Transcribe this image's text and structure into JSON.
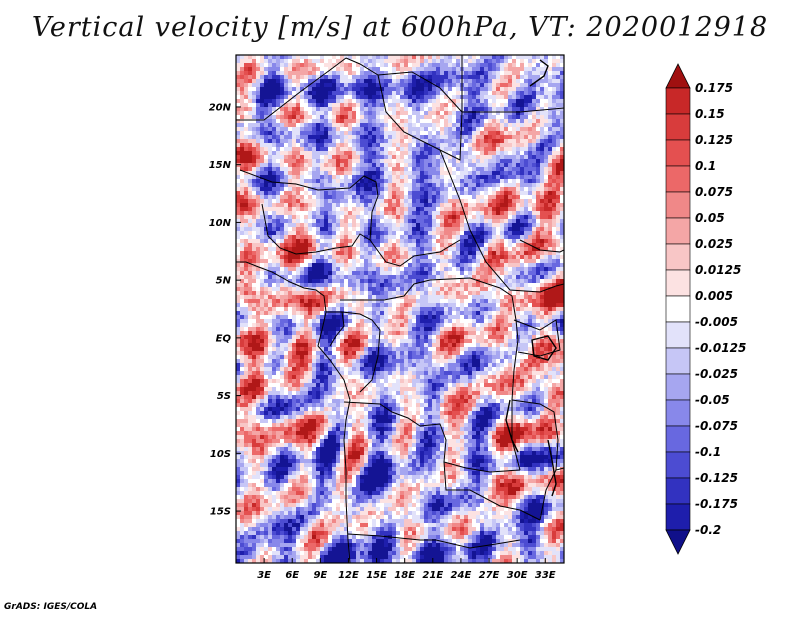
{
  "title": "Vertical velocity [m/s] at 600hPa, VT: 2020012918",
  "credit": "GrADS: IGES/COLA",
  "map": {
    "variable": "Vertical velocity",
    "units": "m/s",
    "level": "600hPa",
    "valid_time": "2020012918",
    "lon_range": [
      0,
      35
    ],
    "lat_range": [
      -19.5,
      24.5
    ],
    "lat_ticks": [
      {
        "value": 20,
        "label": "20N"
      },
      {
        "value": 15,
        "label": "15N"
      },
      {
        "value": 10,
        "label": "10N"
      },
      {
        "value": 5,
        "label": "5N"
      },
      {
        "value": 0,
        "label": "EQ"
      },
      {
        "value": -5,
        "label": "5S"
      },
      {
        "value": -10,
        "label": "10S"
      },
      {
        "value": -15,
        "label": "15S"
      }
    ],
    "lon_ticks": [
      {
        "value": 3,
        "label": "3E"
      },
      {
        "value": 6,
        "label": "6E"
      },
      {
        "value": 9,
        "label": "9E"
      },
      {
        "value": 12,
        "label": "12E"
      },
      {
        "value": 15,
        "label": "15E"
      },
      {
        "value": 18,
        "label": "18E"
      },
      {
        "value": 21,
        "label": "21E"
      },
      {
        "value": 24,
        "label": "24E"
      },
      {
        "value": 27,
        "label": "27E"
      },
      {
        "value": 30,
        "label": "30E"
      },
      {
        "value": 33,
        "label": "33E"
      }
    ]
  },
  "colorbar": {
    "levels": [
      "0.175",
      "0.15",
      "0.125",
      "0.1",
      "0.075",
      "0.05",
      "0.025",
      "0.0125",
      "0.005",
      "-0.005",
      "-0.0125",
      "-0.025",
      "-0.05",
      "-0.075",
      "-0.1",
      "-0.125",
      "-0.175",
      "-0.2"
    ],
    "colors": [
      "#b01818",
      "#c82828",
      "#d83c3c",
      "#e45050",
      "#ec6868",
      "#f08888",
      "#f4a6a6",
      "#f8c6c6",
      "#fce2e2",
      "#ffffff",
      "#e2e2fa",
      "#c6c6f6",
      "#a6a6f0",
      "#8888ea",
      "#6868e0",
      "#4c4cd2",
      "#3232c0",
      "#1e1eac",
      "#141494"
    ],
    "top_arrow_color": "#a01010",
    "bottom_arrow_color": "#10108a"
  }
}
